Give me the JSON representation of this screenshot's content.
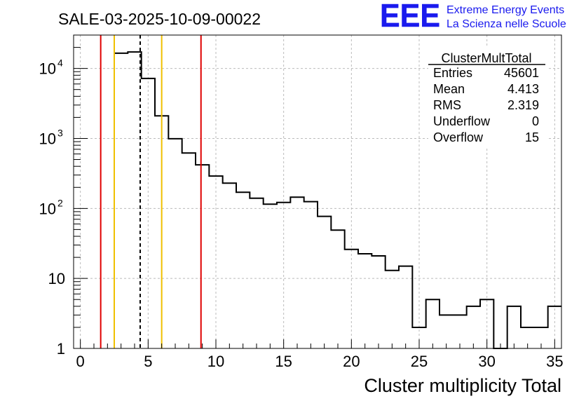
{
  "chart_data": {
    "type": "bar",
    "title": "SALE-03-2025-10-09-00022",
    "xlabel": "Cluster multiplicity Total",
    "ylabel": "",
    "xlim": [
      -0.5,
      35.5
    ],
    "ylim": [
      1,
      30000
    ],
    "yscale": "log",
    "grid": true,
    "bin_width": 1,
    "bins": [
      {
        "low": 2.5,
        "high": 3.5,
        "count": 16500
      },
      {
        "low": 3.5,
        "high": 4.5,
        "count": 17200
      },
      {
        "low": 4.5,
        "high": 5.5,
        "count": 7200
      },
      {
        "low": 5.5,
        "high": 6.5,
        "count": 2100
      },
      {
        "low": 6.5,
        "high": 7.5,
        "count": 990
      },
      {
        "low": 7.5,
        "high": 8.5,
        "count": 620
      },
      {
        "low": 8.5,
        "high": 9.5,
        "count": 420
      },
      {
        "low": 9.5,
        "high": 10.5,
        "count": 290
      },
      {
        "low": 10.5,
        "high": 11.5,
        "count": 230
      },
      {
        "low": 11.5,
        "high": 12.5,
        "count": 170
      },
      {
        "low": 12.5,
        "high": 13.5,
        "count": 140
      },
      {
        "low": 13.5,
        "high": 14.5,
        "count": 115
      },
      {
        "low": 14.5,
        "high": 15.5,
        "count": 122
      },
      {
        "low": 15.5,
        "high": 16.5,
        "count": 145
      },
      {
        "low": 16.5,
        "high": 17.5,
        "count": 125
      },
      {
        "low": 17.5,
        "high": 18.5,
        "count": 77
      },
      {
        "low": 18.5,
        "high": 19.5,
        "count": 49
      },
      {
        "low": 19.5,
        "high": 20.5,
        "count": 26
      },
      {
        "low": 20.5,
        "high": 21.5,
        "count": 22.5
      },
      {
        "low": 21.5,
        "high": 22.5,
        "count": 21
      },
      {
        "low": 22.5,
        "high": 23.5,
        "count": 13
      },
      {
        "low": 23.5,
        "high": 24.5,
        "count": 15
      },
      {
        "low": 24.5,
        "high": 25.5,
        "count": 2
      },
      {
        "low": 25.5,
        "high": 26.5,
        "count": 5
      },
      {
        "low": 26.5,
        "high": 27.5,
        "count": 3
      },
      {
        "low": 27.5,
        "high": 28.5,
        "count": 3
      },
      {
        "low": 28.5,
        "high": 29.5,
        "count": 4
      },
      {
        "low": 29.5,
        "high": 30.5,
        "count": 5
      },
      {
        "low": 30.5,
        "high": 31.5,
        "count": 0
      },
      {
        "low": 31.5,
        "high": 32.5,
        "count": 4
      },
      {
        "low": 32.5,
        "high": 33.5,
        "count": 2
      },
      {
        "low": 33.5,
        "high": 34.5,
        "count": 2
      },
      {
        "low": 34.5,
        "high": 35.5,
        "count": 4
      }
    ],
    "x_ticks": [
      {
        "value": 0,
        "label": "0"
      },
      {
        "value": 5,
        "label": "5"
      },
      {
        "value": 10,
        "label": "10"
      },
      {
        "value": 15,
        "label": "15"
      },
      {
        "value": 20,
        "label": "20"
      },
      {
        "value": 25,
        "label": "25"
      },
      {
        "value": 30,
        "label": "30"
      },
      {
        "value": 35,
        "label": "35"
      }
    ],
    "y_ticks": [
      {
        "value": 1,
        "base": "1",
        "exp": ""
      },
      {
        "value": 10,
        "base": "10",
        "exp": ""
      },
      {
        "value": 100,
        "base": "10",
        "exp": "2"
      },
      {
        "value": 1000,
        "base": "10",
        "exp": "3"
      },
      {
        "value": 10000,
        "base": "10",
        "exp": "4"
      }
    ],
    "vertical_lines": [
      {
        "x": 1.5,
        "color": "#e00000",
        "style": "solid"
      },
      {
        "x": 2.5,
        "color": "#f0c000",
        "style": "solid"
      },
      {
        "x": 4.413,
        "color": "#000000",
        "style": "dashed"
      },
      {
        "x": 6.0,
        "color": "#f0c000",
        "style": "solid"
      },
      {
        "x": 8.9,
        "color": "#e00000",
        "style": "solid"
      }
    ],
    "stats": {
      "name": "ClusterMultTotal",
      "rows": [
        {
          "label": "Entries",
          "value": "45601"
        },
        {
          "label": "Mean",
          "value": "4.413"
        },
        {
          "label": "RMS",
          "value": "2.319"
        },
        {
          "label": "Underflow",
          "value": "0"
        },
        {
          "label": "Overflow",
          "value": "15"
        }
      ]
    }
  },
  "logo": {
    "mark": "EEE",
    "line1": "Extreme Energy Events",
    "line2": "La Scienza nelle Scuole",
    "color": "#1a1aee"
  }
}
